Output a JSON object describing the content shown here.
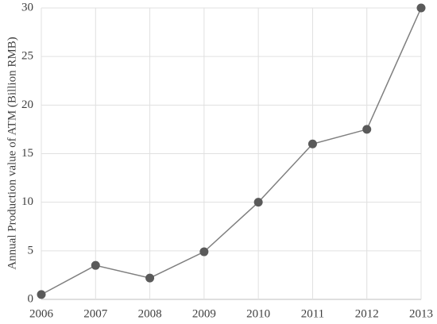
{
  "chart_data": {
    "type": "line",
    "y_label": "Annual Production value of ATM (Billion RMB)",
    "x": [
      2006,
      2007,
      2008,
      2009,
      2010,
      2011,
      2012,
      2013
    ],
    "series": [
      {
        "values": [
          0.5,
          3.5,
          2.2,
          4.9,
          10,
          16,
          17.5,
          30
        ],
        "color": "#5a5a5a"
      }
    ],
    "xlim": [
      2006,
      2013
    ],
    "xticks": [
      2006,
      2007,
      2008,
      2009,
      2010,
      2011,
      2012,
      2013
    ],
    "ylim": [
      0,
      30
    ],
    "yticks": [
      0,
      5,
      10,
      15,
      20,
      25,
      30
    ],
    "grid": true
  }
}
